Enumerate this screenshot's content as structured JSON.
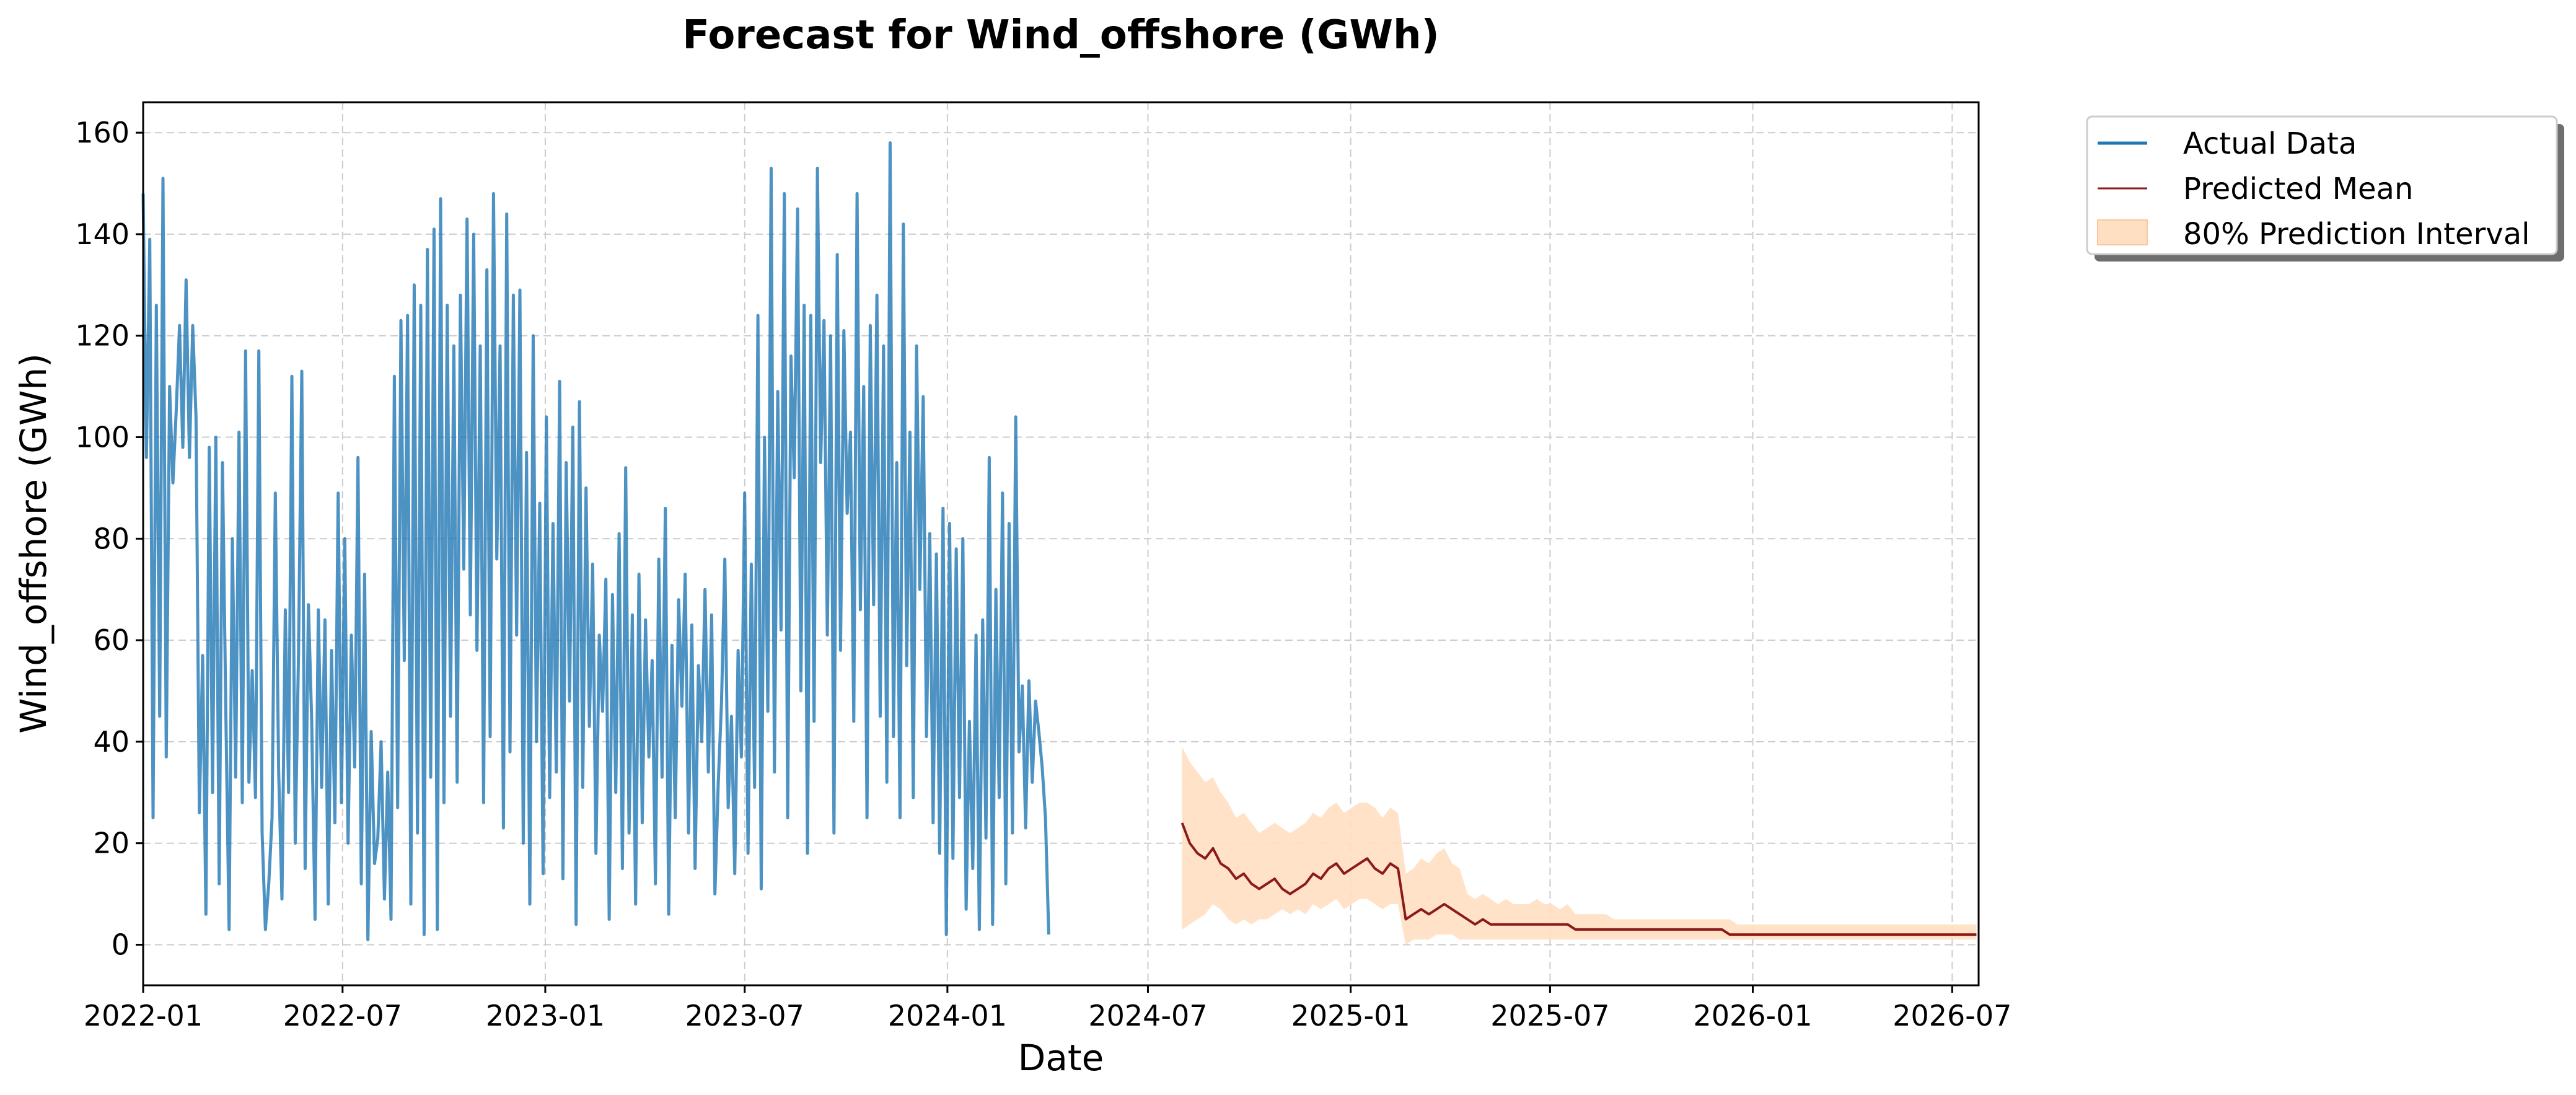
{
  "chart_data": {
    "type": "line",
    "title": "Forecast for Wind_offshore (GWh)",
    "xlabel": "Date",
    "ylabel": "Wind_offshore (GWh)",
    "x_range": [
      "2022-01-01",
      "2026-07-25"
    ],
    "ylim": [
      -8,
      166
    ],
    "x_ticks": [
      "2022-01",
      "2022-07",
      "2023-01",
      "2023-07",
      "2024-01",
      "2024-07",
      "2025-01",
      "2025-07",
      "2026-01",
      "2026-07"
    ],
    "y_ticks": [
      0,
      20,
      40,
      60,
      80,
      100,
      120,
      140,
      160
    ],
    "grid": true,
    "legend_position": "outside-top-right",
    "colors": {
      "actual": "#1f77b4",
      "predicted": "#8b1a1a",
      "interval": "#ffdfc2"
    },
    "legend": [
      {
        "label": "Actual Data",
        "kind": "line",
        "color": "#1f77b4"
      },
      {
        "label": "Predicted Mean",
        "kind": "line",
        "color": "#8b1a1a"
      },
      {
        "label": "80% Prediction Interval",
        "kind": "patch",
        "color": "#ffdfc2"
      }
    ],
    "series": [
      {
        "name": "Actual Data",
        "style": "line",
        "x_start": "2022-01-01",
        "x_end": "2024-07-31",
        "x_step_days": 3,
        "values": [
          148,
          96,
          139,
          25,
          126,
          45,
          151,
          37,
          110,
          91,
          105,
          122,
          98,
          131,
          96,
          122,
          104,
          26,
          57,
          6,
          98,
          30,
          100,
          12,
          95,
          47,
          3,
          80,
          33,
          101,
          28,
          117,
          32,
          54,
          29,
          117,
          22,
          3,
          12,
          25,
          89,
          34,
          9,
          66,
          30,
          112,
          20,
          57,
          113,
          15,
          67,
          44,
          5,
          66,
          31,
          64,
          8,
          58,
          24,
          89,
          28,
          80,
          20,
          61,
          35,
          96,
          12,
          73,
          1,
          42,
          16,
          21,
          40,
          9,
          34,
          5,
          112,
          27,
          123,
          56,
          124,
          8,
          130,
          22,
          126,
          2,
          137,
          33,
          141,
          3,
          147,
          28,
          126,
          45,
          118,
          32,
          128,
          74,
          143,
          65,
          140,
          58,
          118,
          28,
          133,
          41,
          148,
          76,
          118,
          23,
          144,
          38,
          128,
          61,
          129,
          20,
          97,
          8,
          120,
          40,
          87,
          14,
          104,
          29,
          83,
          34,
          111,
          13,
          95,
          48,
          102,
          4,
          107,
          31,
          90,
          43,
          75,
          18,
          61,
          46,
          72,
          5,
          69,
          30,
          81,
          15,
          94,
          22,
          65,
          8,
          73,
          24,
          64,
          37,
          56,
          12,
          76,
          33,
          86,
          6,
          59,
          25,
          68,
          47,
          73,
          22,
          63,
          15,
          55,
          40,
          70,
          34,
          65,
          10,
          32,
          48,
          76,
          27,
          45,
          14,
          58,
          37,
          89,
          18,
          75,
          31,
          124,
          11,
          100,
          46,
          153,
          34,
          109,
          62,
          148,
          25,
          116,
          92,
          145,
          50,
          126,
          18,
          124,
          44,
          153,
          95,
          123,
          61,
          120,
          22,
          136,
          58,
          121,
          85,
          101,
          44,
          148,
          66,
          110,
          25,
          122,
          67,
          128,
          45,
          118,
          32,
          158,
          41,
          95,
          25,
          142,
          55,
          101,
          29,
          118,
          70,
          108,
          41,
          81,
          24,
          77,
          18,
          86,
          2,
          83,
          17,
          78,
          29,
          80,
          7,
          44,
          15,
          61,
          3,
          64,
          21,
          96,
          4,
          70,
          29,
          89,
          12,
          83,
          22,
          104,
          38,
          51,
          23,
          52,
          32,
          48,
          42,
          35,
          25,
          2
        ]
      },
      {
        "name": "Predicted Mean",
        "style": "line",
        "x_start": "2024-08-01",
        "x_end": "2026-07-25",
        "x_step_days": 7,
        "values": [
          24,
          20,
          18,
          17,
          19,
          16,
          15,
          13,
          14,
          12,
          11,
          12,
          13,
          11,
          10,
          11,
          12,
          14,
          13,
          15,
          16,
          14,
          15,
          16,
          17,
          15,
          14,
          16,
          15,
          5,
          6,
          7,
          6,
          7,
          8,
          7,
          6,
          5,
          4,
          5,
          4,
          4,
          4,
          4,
          4,
          4,
          4,
          4,
          4,
          4,
          4,
          3,
          3,
          3,
          3,
          3,
          3,
          3,
          3,
          3,
          3,
          3,
          3,
          3,
          3,
          3,
          3,
          3,
          3,
          3,
          3,
          2,
          2,
          2,
          2,
          2,
          2,
          2,
          2,
          2,
          2,
          2,
          2,
          2,
          2,
          2,
          2,
          2,
          2,
          2,
          2,
          2,
          2,
          2,
          2,
          2,
          2,
          2,
          2,
          2,
          2,
          2,
          2,
          2
        ]
      },
      {
        "name": "80% Prediction Interval",
        "style": "band",
        "x_start": "2024-08-01",
        "x_end": "2026-07-25",
        "x_step_days": 7,
        "lower": [
          3,
          4,
          5,
          6,
          8,
          7,
          5,
          4,
          5,
          4,
          5,
          5,
          6,
          7,
          6,
          7,
          6,
          8,
          7,
          8,
          9,
          7,
          8,
          9,
          9,
          8,
          7,
          8,
          8,
          0,
          1,
          1,
          1,
          2,
          2,
          2,
          1,
          1,
          1,
          1,
          1,
          1,
          1,
          1,
          1,
          1,
          1,
          1,
          1,
          1,
          1,
          1,
          1,
          1,
          1,
          1,
          1,
          1,
          1,
          1,
          1,
          1,
          1,
          1,
          1,
          1,
          1,
          1,
          1,
          1,
          1,
          1,
          1,
          1,
          1,
          1,
          1,
          1,
          1,
          1,
          1,
          1,
          1,
          1,
          1,
          1,
          1,
          1,
          1,
          1,
          1,
          1,
          1,
          1,
          1,
          1,
          1,
          1,
          1,
          1,
          1,
          1,
          1,
          1
        ],
        "upper": [
          39,
          36,
          34,
          32,
          33,
          30,
          28,
          25,
          26,
          24,
          22,
          23,
          24,
          23,
          22,
          23,
          24,
          26,
          25,
          27,
          28,
          26,
          27,
          28,
          28,
          27,
          25,
          27,
          26,
          14,
          15,
          17,
          16,
          18,
          19,
          16,
          15,
          10,
          9,
          10,
          9,
          8,
          9,
          8,
          8,
          8,
          9,
          8,
          8,
          7,
          8,
          6,
          6,
          6,
          6,
          6,
          5,
          5,
          5,
          5,
          5,
          5,
          5,
          5,
          5,
          5,
          5,
          5,
          5,
          5,
          5,
          5,
          4,
          4,
          4,
          4,
          4,
          4,
          4,
          4,
          4,
          4,
          4,
          4,
          4,
          4,
          4,
          4,
          4,
          4,
          4,
          4,
          4,
          4,
          4,
          4,
          4,
          4,
          4,
          4,
          4,
          4,
          4,
          4
        ]
      }
    ]
  }
}
